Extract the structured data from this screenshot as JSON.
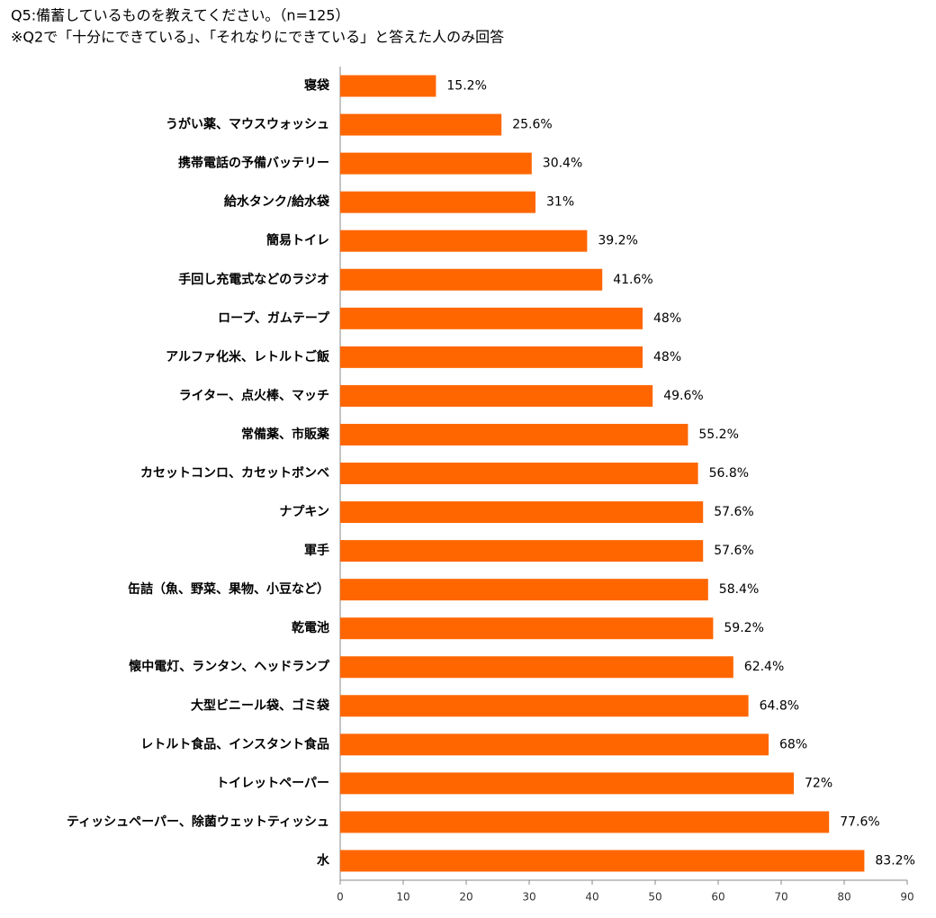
{
  "chart_data": {
    "type": "bar",
    "orientation": "horizontal",
    "title": "Q5:備蓄しているものを教えてください。（n=125）",
    "subtitle": "※Q2で「十分にできている」、「それなりにできている」と答えた人のみ回答",
    "categories": [
      "寝袋",
      "うがい薬、マウスウォッシュ",
      "携帯電話の予備バッテリー",
      "給水タンク/給水袋",
      "簡易トイレ",
      "手回し充電式などのラジオ",
      "ロープ、ガムテープ",
      "アルファ化米、レトルトご飯",
      "ライター、点火棒、マッチ",
      "常備薬、市販薬",
      "カセットコンロ、カセットボンベ",
      "ナプキン",
      "軍手",
      "缶詰（魚、野菜、果物、小豆など）",
      "乾電池",
      "懐中電灯、ランタン、ヘッドランプ",
      "大型ビニール袋、ゴミ袋",
      "レトルト食品、インスタント食品",
      "トイレットペーパー",
      "ティッシュペーパー、除菌ウェットティッシュ",
      "水"
    ],
    "values": [
      15.2,
      25.6,
      30.4,
      31,
      39.2,
      41.6,
      48,
      48,
      49.6,
      55.2,
      56.8,
      57.6,
      57.6,
      58.4,
      59.2,
      62.4,
      64.8,
      68,
      72,
      77.6,
      83.2
    ],
    "value_labels": [
      "15.2%",
      "25.6%",
      "30.4%",
      "31%",
      "39.2%",
      "41.6%",
      "48%",
      "48%",
      "49.6%",
      "55.2%",
      "56.8%",
      "57.6%",
      "57.6%",
      "58.4%",
      "59.2%",
      "62.4%",
      "64.8%",
      "68%",
      "72%",
      "77.6%",
      "83.2%"
    ],
    "color": "#ff6600",
    "xlim": [
      0,
      90
    ],
    "xticks": [
      0,
      10,
      20,
      30,
      40,
      50,
      60,
      70,
      80,
      90
    ],
    "grid": false
  }
}
